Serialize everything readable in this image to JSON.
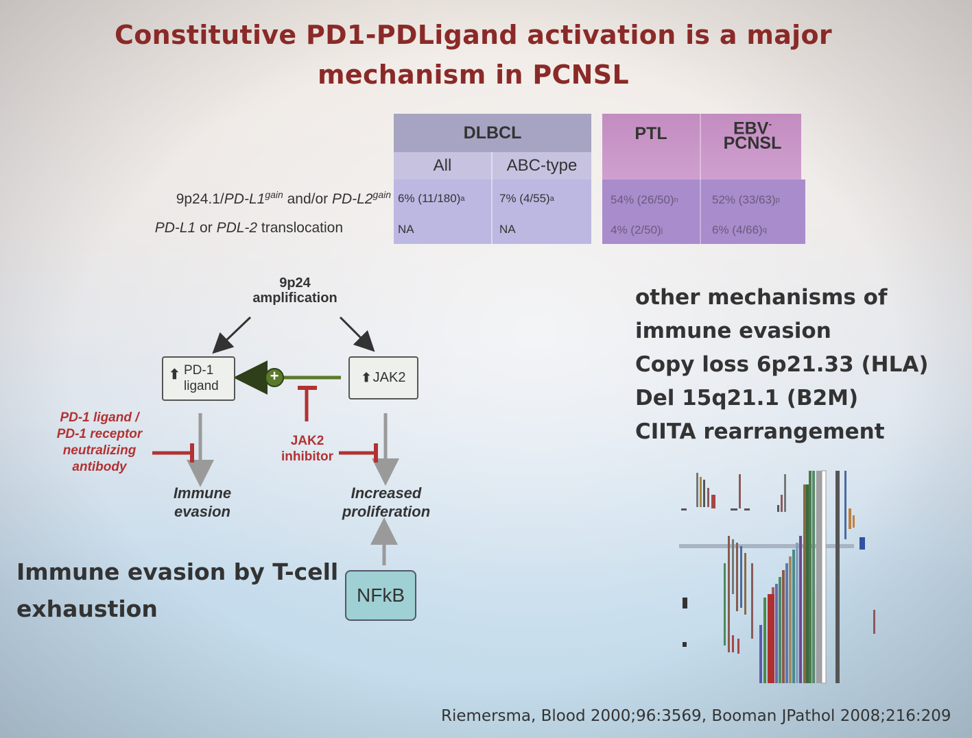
{
  "slide": {
    "title_line1": "Constitutive PD1-PDLigand activation is a major",
    "title_line2": "mechanism in PCNSL"
  },
  "table": {
    "group_dlbcl": "DLBCL",
    "group_ptl": "PTL",
    "group_ebv_line1": "EBV",
    "group_ebv_sup": "-",
    "group_ebv_line2": "PCNSL",
    "sub_all": "All",
    "sub_abc": "ABC-type",
    "row1_label_a": "9p24.1/",
    "row1_label_b": "PD-L1",
    "row1_label_c": "gain",
    "row1_label_d": " and/or ",
    "row1_label_e": "PD-L2",
    "row1_label_f": "gain",
    "row2_label_a": "PD-L1",
    "row2_label_b": " or ",
    "row2_label_c": "PDL-2",
    "row2_label_d": " translocation",
    "rows": [
      [
        "6% (11/180)",
        "a",
        "7% (4/55)",
        "a",
        "54% (26/50)",
        "n",
        "52% (33/63)",
        "p"
      ],
      [
        "NA",
        "",
        "NA",
        "",
        "4% (2/50)",
        "j",
        "6% (4/66)",
        "q"
      ]
    ]
  },
  "diagram": {
    "amplification_line1": "9p24",
    "amplification_line2": "amplification",
    "pd1_ligand_line1": "PD-1",
    "pd1_ligand_line2": "ligand",
    "jak2": "JAK2",
    "plus": "+",
    "antibody_lines": [
      "PD-1 ligand /",
      "PD-1 receptor",
      "neutralizing",
      "antibody"
    ],
    "jak2_inhibitor_line1": "JAK2",
    "jak2_inhibitor_line2": "inhibitor",
    "immune_evasion_line1": "Immune",
    "immune_evasion_line2": "evasion",
    "proliferation_line1": "Increased",
    "proliferation_line2": "proliferation",
    "nfkb": "NFkB"
  },
  "other_mechanisms": [
    "other mechanisms of",
    "immune evasion",
    "Copy loss 6p21.33 (HLA)",
    "Del 15q21.1 (B2M)",
    "CIITA rearrangement"
  ],
  "exhaustion_line1": "Immune evasion by T-cell",
  "exhaustion_line2": "exhaustion",
  "reference": "Riemersma, Blood 2000;96:3569, Booman JPathol 2008;216:209",
  "colors": {
    "title": "#8a2a28",
    "dlbcl_header": "#a7a3c2",
    "dlbcl_body": "#c0bde0",
    "ptl_header": "#c48fbf",
    "ptl_body": "#a98ccc",
    "inhibitor_red": "#b23232",
    "activation_green": "#5a7a2a",
    "nfkb_fill": "#9fd0d4"
  }
}
